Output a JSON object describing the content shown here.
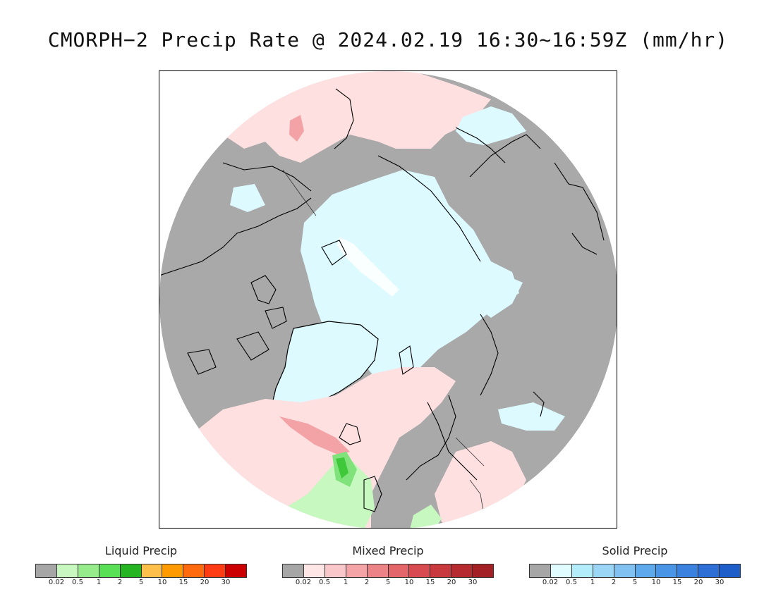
{
  "title": "CMORPH−2 Precip Rate @ 2024.02.19 16:30~16:59Z (mm/hr)",
  "map": {
    "colors": {
      "no_precip": "#a9a9a9",
      "mixed_light": "#ffe0e0",
      "solid_light": "#dcfaff",
      "liquid_light": "#c6f8c0",
      "liquid_mid": "#7fe27a",
      "liquid_strong": "#3ec83a",
      "mixed_mid": "#f3a3a6",
      "coast": "#000000"
    }
  },
  "legends": [
    {
      "title": "Liquid Precip",
      "colors": [
        "#a6a6a6",
        "#c8f7c0",
        "#96ec8a",
        "#5ae057",
        "#26b423",
        "#fec04a",
        "#ff9a00",
        "#ff6a0f",
        "#ff3c13",
        "#cc0000"
      ],
      "ticks": [
        "0.02",
        "0.5",
        "1",
        "2",
        "5",
        "10",
        "15",
        "20",
        "30"
      ]
    },
    {
      "title": "Mixed Precip",
      "colors": [
        "#a6a6a6",
        "#ffe6e6",
        "#f9c6c9",
        "#f4a3a7",
        "#ec8487",
        "#e3666b",
        "#d84c51",
        "#c93a3e",
        "#b52b30",
        "#a32025"
      ],
      "ticks": [
        "0.02",
        "0.5",
        "1",
        "2",
        "5",
        "10",
        "15",
        "20",
        "30"
      ]
    },
    {
      "title": "Solid Precip",
      "colors": [
        "#a6a6a6",
        "#e0fcff",
        "#b3ecfa",
        "#9bd6f7",
        "#80c1f2",
        "#5ea9ec",
        "#4a95e6",
        "#3a82de",
        "#2d6fd4",
        "#1e5ec8"
      ],
      "ticks": [
        "0.02",
        "0.5",
        "1",
        "2",
        "5",
        "10",
        "15",
        "20",
        "30"
      ]
    }
  ]
}
